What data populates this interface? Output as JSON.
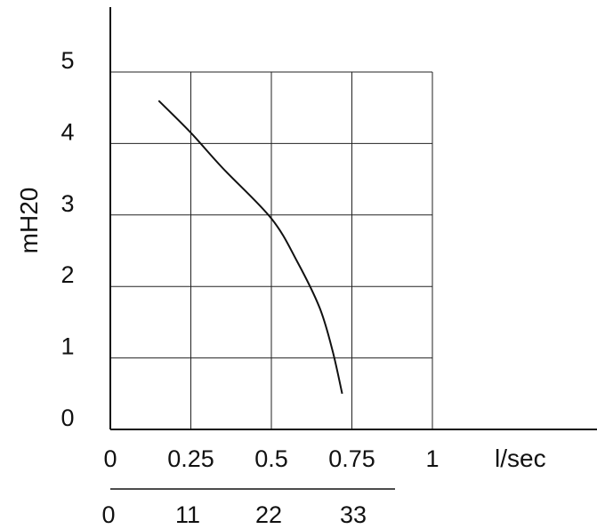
{
  "chart_data": {
    "type": "line",
    "title": "",
    "xlabel": "l/sec",
    "ylabel": "mH20",
    "x_ticks": [
      "0",
      "0.25",
      "0.5",
      "0.75",
      "1"
    ],
    "y_ticks": [
      "0",
      "1",
      "2",
      "3",
      "4",
      "5"
    ],
    "secondary_x_ticks": [
      "0",
      "11",
      "22",
      "33"
    ],
    "xlim": [
      0,
      1
    ],
    "ylim": [
      0,
      5
    ],
    "grid": true,
    "series": [
      {
        "x": [
          0.15,
          0.25,
          0.35,
          0.5,
          0.58,
          0.65,
          0.69,
          0.72
        ],
        "y": [
          4.6,
          4.15,
          3.65,
          2.95,
          2.35,
          1.7,
          1.1,
          0.5
        ],
        "color": "#111111"
      }
    ]
  }
}
